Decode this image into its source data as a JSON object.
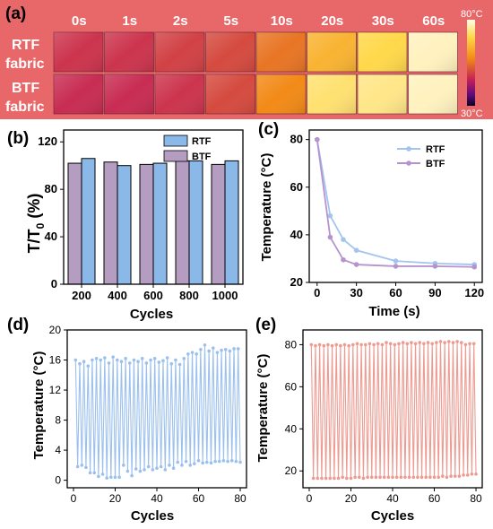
{
  "panel_a": {
    "label": "(a)",
    "times": [
      "0s",
      "1s",
      "2s",
      "5s",
      "10s",
      "20s",
      "30s",
      "60s"
    ],
    "rows": [
      {
        "label_line1": "RTF",
        "label_line2": "fabric",
        "heat": [
          0.35,
          0.35,
          0.38,
          0.4,
          0.5,
          0.68,
          0.8,
          0.95
        ]
      },
      {
        "label_line1": "BTF",
        "label_line2": "fabric",
        "heat": [
          0.33,
          0.33,
          0.35,
          0.4,
          0.55,
          0.85,
          0.88,
          0.95
        ]
      }
    ],
    "colorbar": {
      "max_label": "80°C",
      "min_label": "30°C"
    },
    "background_color": "#e8686a"
  },
  "chart_data": [
    {
      "panel": "(b)",
      "type": "bar",
      "categories": [
        "200",
        "400",
        "600",
        "800",
        "1000"
      ],
      "series": [
        {
          "name": "RTF",
          "color": "#8ab8e8",
          "values": [
            106,
            100,
            102,
            104,
            104
          ]
        },
        {
          "name": "BTF",
          "color": "#b59cc1",
          "values": [
            102,
            103,
            101,
            104,
            101
          ]
        }
      ],
      "xlabel": "Cycles",
      "ylabel_main": "T/T",
      "ylabel_sub": "0",
      "ylabel_unit": " (%)",
      "ylim": [
        0,
        130
      ],
      "yticks": [
        0,
        40,
        80,
        120
      ],
      "legend": "top-right"
    },
    {
      "panel": "(c)",
      "type": "line",
      "xlabel": "Time (s)",
      "ylabel": "Temperature (°C)",
      "xlim": [
        -6,
        126
      ],
      "ylim": [
        20,
        84
      ],
      "xticks": [
        0,
        30,
        60,
        90,
        120
      ],
      "yticks": [
        20,
        40,
        60,
        80
      ],
      "series": [
        {
          "name": "RTF",
          "color": "#a3c4ee",
          "x": [
            0,
            10,
            20,
            30,
            60,
            90,
            120
          ],
          "y": [
            80,
            48,
            38,
            33.5,
            29,
            28,
            27.5
          ]
        },
        {
          "name": "BTF",
          "color": "#b693cf",
          "x": [
            0,
            10,
            20,
            30,
            60,
            90,
            120
          ],
          "y": [
            80,
            39,
            29.5,
            27.5,
            26.8,
            26.8,
            26.5
          ]
        }
      ],
      "legend": "center-right"
    },
    {
      "panel": "(d)",
      "type": "line",
      "xlabel": "Cycles",
      "ylabel": "Temperature (°C)",
      "xlim": [
        -3,
        83
      ],
      "ylim": [
        -1,
        20
      ],
      "xticks": [
        0,
        20,
        40,
        60,
        80
      ],
      "yticks": [
        0,
        4,
        8,
        12,
        16,
        20
      ],
      "series": [
        {
          "name": "",
          "color": "#9bc0ee",
          "x": [
            1,
            2,
            3,
            4,
            5,
            6,
            7,
            8,
            9,
            10,
            11,
            12,
            13,
            14,
            15,
            16,
            17,
            18,
            19,
            20,
            21,
            22,
            23,
            24,
            25,
            26,
            27,
            28,
            29,
            30,
            31,
            32,
            33,
            34,
            35,
            36,
            37,
            38,
            39,
            40,
            41,
            42,
            43,
            44,
            45,
            46,
            47,
            48,
            49,
            50,
            51,
            52,
            53,
            54,
            55,
            56,
            57,
            58,
            59,
            60,
            61,
            62,
            63,
            64,
            65,
            66,
            67,
            68,
            69,
            70,
            71,
            72,
            73,
            74,
            75,
            76,
            77,
            78,
            79,
            80
          ],
          "y": [
            16.0,
            1.8,
            15.5,
            2.0,
            15.8,
            1.7,
            15.2,
            1.0,
            16.0,
            1.0,
            16.2,
            0.5,
            16.0,
            0.8,
            16.3,
            0.3,
            15.6,
            0.4,
            16.4,
            0.4,
            16.0,
            0.4,
            15.8,
            2.0,
            16.2,
            1.2,
            15.6,
            0.6,
            16.0,
            1.5,
            15.8,
            1.2,
            16.2,
            1.4,
            15.6,
            1.8,
            16.0,
            1.4,
            16.2,
            1.6,
            15.7,
            1.8,
            15.9,
            1.4,
            16.3,
            2.0,
            15.5,
            1.6,
            16.0,
            2.4,
            15.4,
            2.0,
            16.2,
            2.5,
            16.8,
            2.0,
            17.0,
            2.2,
            16.8,
            2.6,
            17.4,
            2.3,
            18.0,
            2.4,
            17.2,
            2.3,
            17.6,
            2.5,
            17.0,
            2.5,
            17.3,
            2.6,
            17.4,
            2.5,
            17.2,
            2.6,
            17.5,
            2.5,
            17.5,
            2.4
          ]
        }
      ]
    },
    {
      "panel": "(e)",
      "type": "line",
      "xlabel": "Cycles",
      "ylabel": "Temperature (°C)",
      "xlim": [
        -3,
        83
      ],
      "ylim": [
        12,
        87
      ],
      "xticks": [
        0,
        20,
        40,
        60,
        80
      ],
      "yticks": [
        20,
        40,
        60,
        80
      ],
      "series": [
        {
          "name": "",
          "color": "#ee9a90",
          "x": [
            1,
            2,
            3,
            4,
            5,
            6,
            7,
            8,
            9,
            10,
            11,
            12,
            13,
            14,
            15,
            16,
            17,
            18,
            19,
            20,
            21,
            22,
            23,
            24,
            25,
            26,
            27,
            28,
            29,
            30,
            31,
            32,
            33,
            34,
            35,
            36,
            37,
            38,
            39,
            40,
            41,
            42,
            43,
            44,
            45,
            46,
            47,
            48,
            49,
            50,
            51,
            52,
            53,
            54,
            55,
            56,
            57,
            58,
            59,
            60,
            61,
            62,
            63,
            64,
            65,
            66,
            67,
            68,
            69,
            70,
            71,
            72,
            73,
            74,
            75,
            76,
            77,
            78,
            79,
            80
          ],
          "y": [
            80,
            16.5,
            79.5,
            16.5,
            80,
            16.5,
            79.5,
            16.5,
            80,
            16.5,
            79.5,
            16.5,
            80,
            16.5,
            79.5,
            17,
            80,
            16.5,
            79.5,
            16.5,
            80,
            17,
            80.5,
            17,
            80,
            16.5,
            80,
            17,
            80.5,
            17,
            80,
            17,
            80.5,
            17,
            80,
            17,
            81,
            17,
            80.5,
            17,
            80,
            17,
            80.5,
            17,
            81,
            17,
            80.5,
            17,
            81,
            17,
            80.5,
            17,
            81,
            17,
            80.5,
            17,
            81,
            17,
            80.5,
            17,
            81,
            17,
            81.5,
            17.5,
            81,
            17,
            81.5,
            17.5,
            81,
            17.5,
            81.5,
            17.5,
            81,
            18,
            80,
            18,
            80.5,
            18.5,
            80.5,
            18.5
          ]
        }
      ]
    }
  ]
}
